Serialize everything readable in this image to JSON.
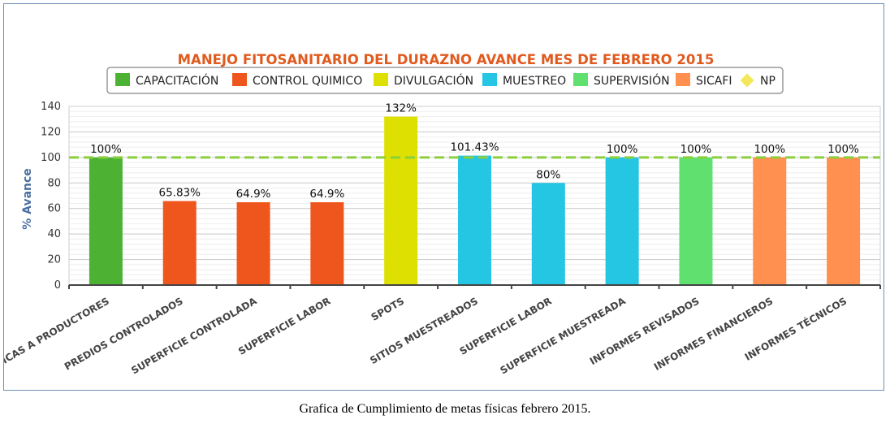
{
  "caption": "Grafica de Cumplimiento de metas físicas febrero 2015.",
  "chart_data": {
    "type": "bar",
    "title": "MANEJO FITOSANITARIO DEL DURAZNO AVANCE MES DE FEBRERO 2015",
    "title_color": "#e05a1e",
    "ylabel": "% Avance",
    "xlabel": "",
    "ylim": [
      0,
      140
    ],
    "yticks": [
      0,
      20,
      40,
      60,
      80,
      100,
      120,
      140
    ],
    "grid": true,
    "reference_line": {
      "value": 100,
      "color": "#8ccf3c"
    },
    "legend_position": "top-center",
    "legend": [
      {
        "name": "CAPACITACIÓN",
        "color": "#4db234",
        "marker": "square"
      },
      {
        "name": "CONTROL QUIMICO",
        "color": "#ee561d",
        "marker": "square"
      },
      {
        "name": "DIVULGACIÓN",
        "color": "#dde000",
        "marker": "square"
      },
      {
        "name": "MUESTREO",
        "color": "#24c6e4",
        "marker": "square"
      },
      {
        "name": "SUPERVISIÓN",
        "color": "#60e06e",
        "marker": "square"
      },
      {
        "name": "SICAFI",
        "color": "#ff9050",
        "marker": "square"
      },
      {
        "name": "NP",
        "color": "#f4e85a",
        "marker": "diamond"
      }
    ],
    "categories": [
      "ICAS A PRODUCTORES",
      "PREDIOS CONTROLADOS",
      "SUPERFICIE CONTROLADA",
      "SUPERFICIE LABOR",
      "SPOTS",
      "SITIOS MUESTREADOS",
      "SUPERFICIE LABOR",
      "SUPERFICIE MUESTREADA",
      "INFORMES REVISADOS",
      "INFORMES FINANCIEROS",
      "INFORMES TÉCNICOS"
    ],
    "values": [
      100,
      65.83,
      64.9,
      64.9,
      132,
      101.43,
      80,
      100,
      100,
      100,
      100
    ],
    "value_labels": [
      "100%",
      "65.83%",
      "64.9%",
      "64.9%",
      "132%",
      "101.43%",
      "80%",
      "100%",
      "100%",
      "100%",
      "100%"
    ],
    "bar_series": [
      "CAPACITACIÓN",
      "CONTROL QUIMICO",
      "CONTROL QUIMICO",
      "CONTROL QUIMICO",
      "DIVULGACIÓN",
      "MUESTREO",
      "MUESTREO",
      "MUESTREO",
      "SUPERVISIÓN",
      "SICAFI",
      "SICAFI"
    ]
  }
}
